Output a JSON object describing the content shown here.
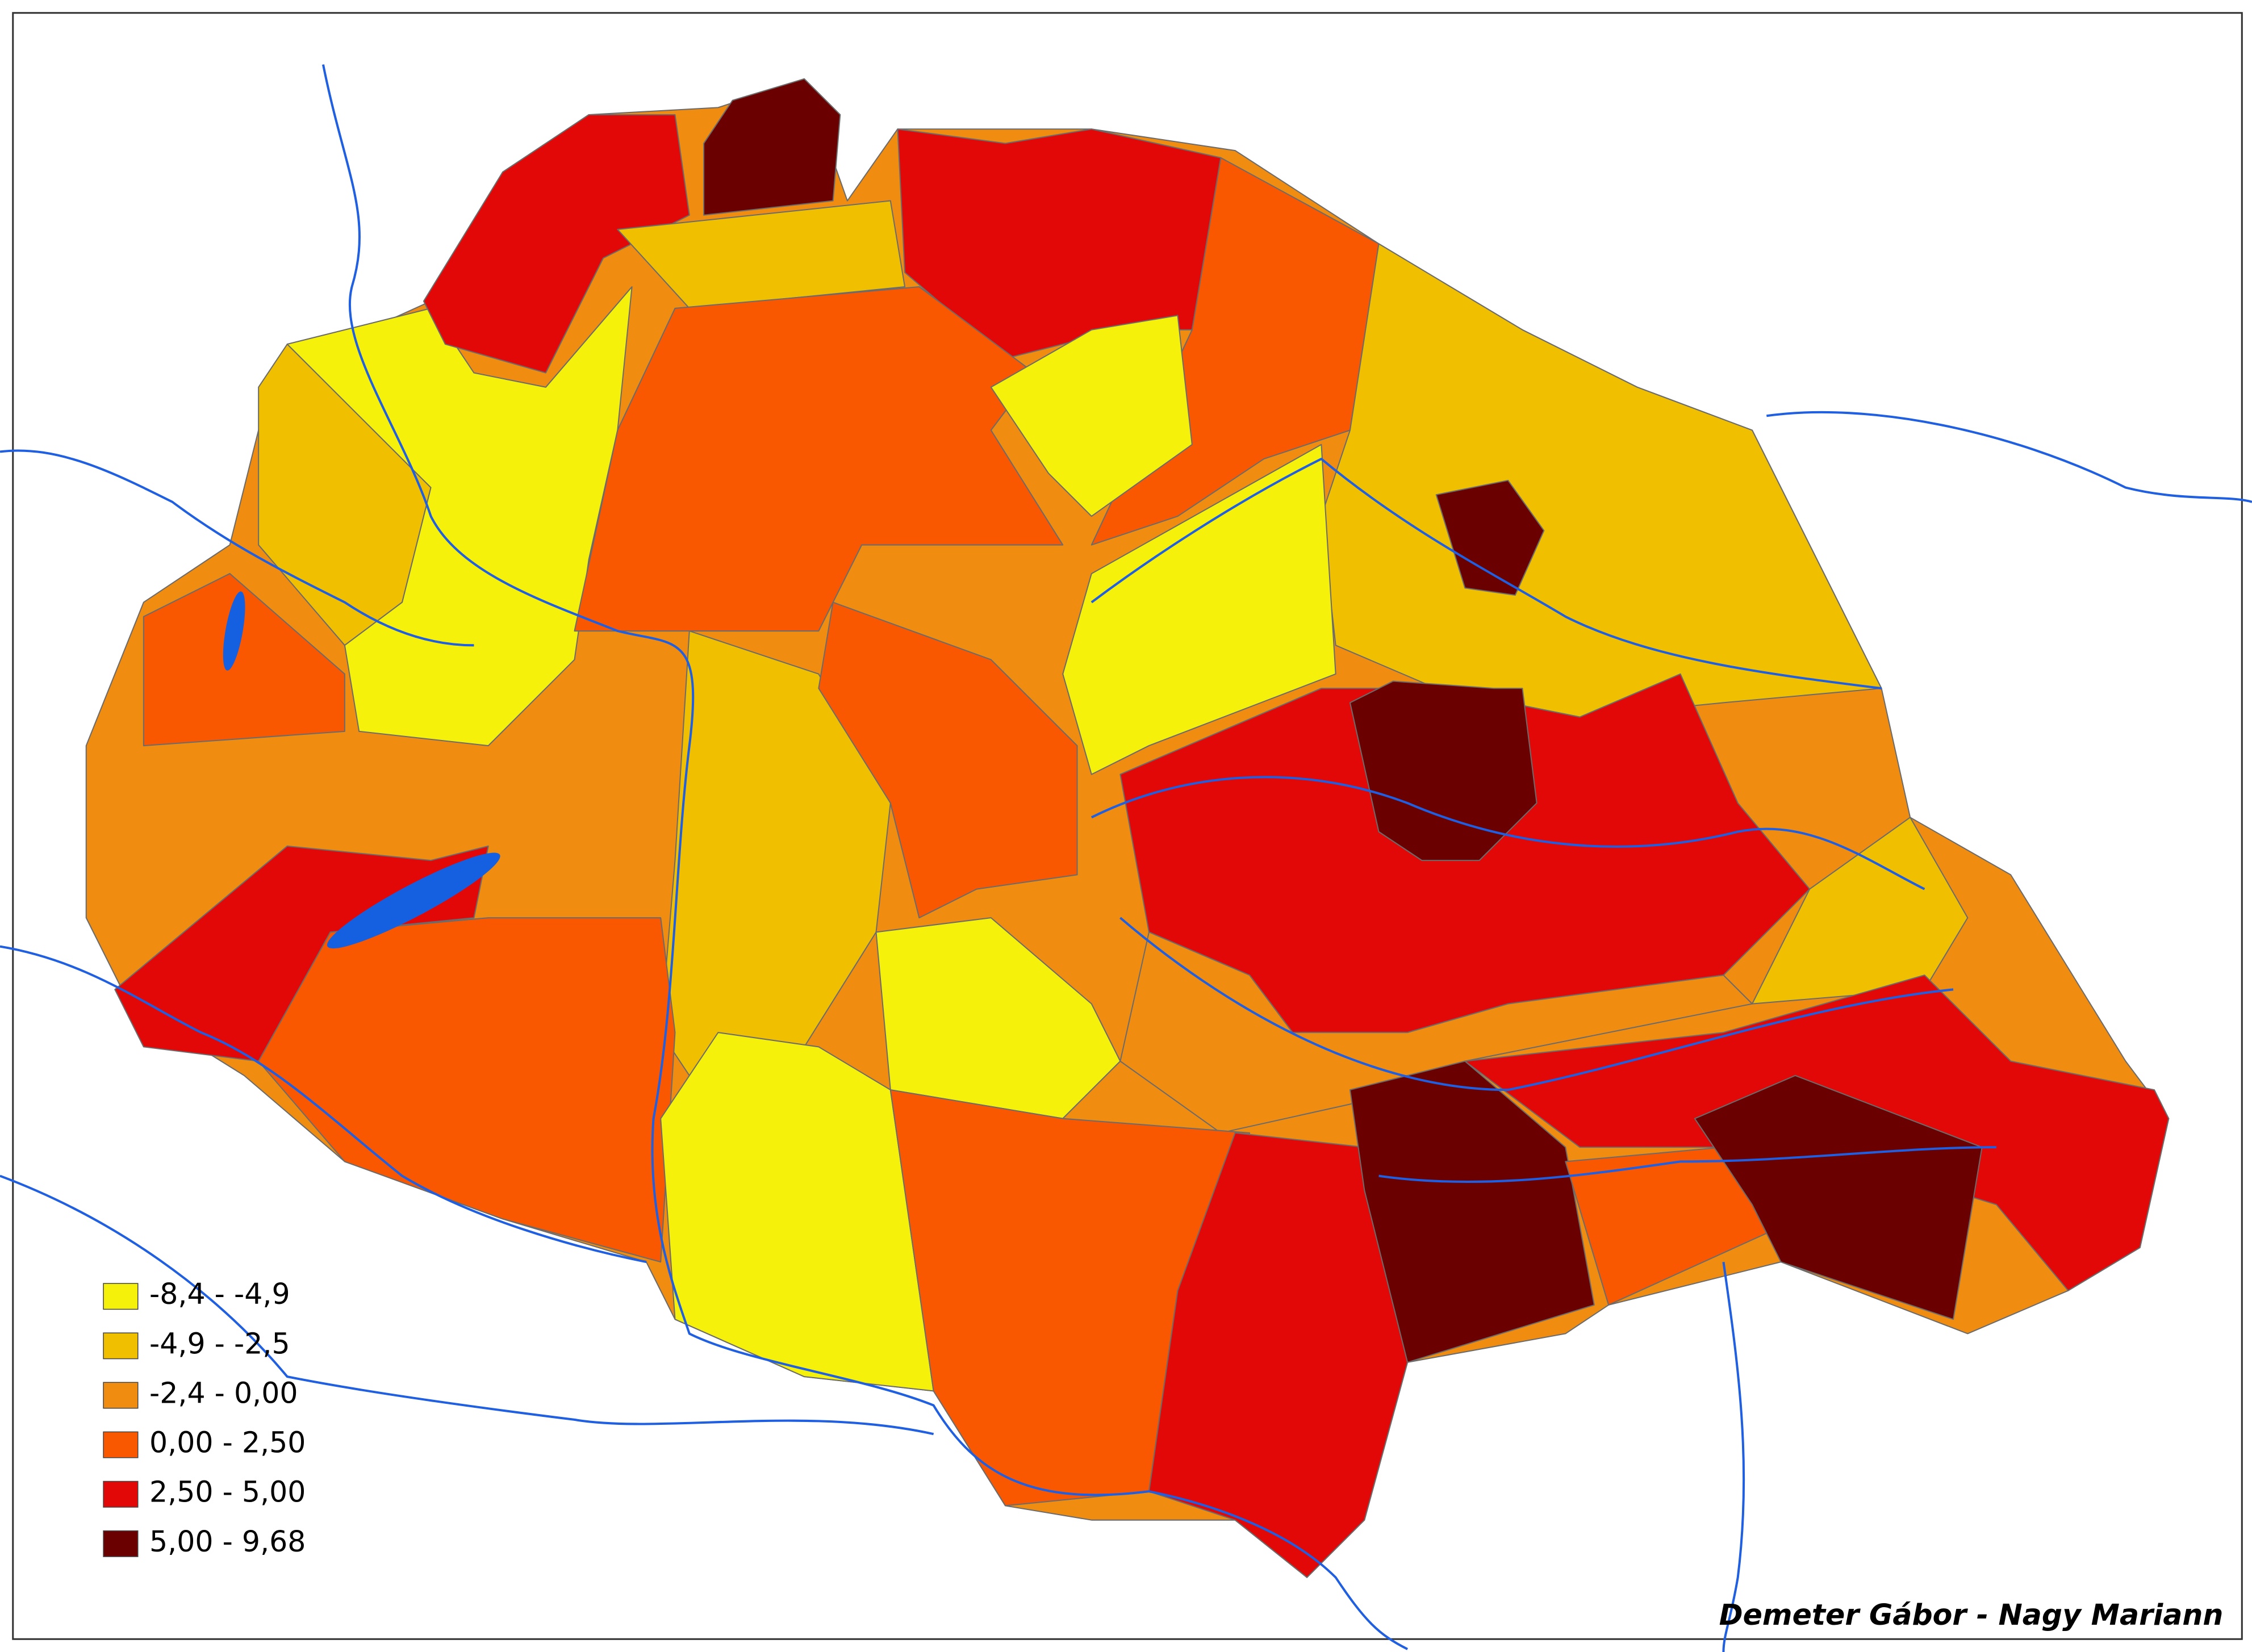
{
  "legend": {
    "items": [
      {
        "label": "-8,4  - -4,9",
        "color": "#f5f10a"
      },
      {
        "label": "-4,9  - -2,5",
        "color": "#f0c000"
      },
      {
        "label": "-2,4  - 0,00",
        "color": "#f08c10"
      },
      {
        "label": "0,00 - 2,50",
        "color": "#fa5800"
      },
      {
        "label": "2,50 - 5,00",
        "color": "#e20808"
      },
      {
        "label": "5,00 - 9,68",
        "color": "#6b0000"
      }
    ]
  },
  "credit": "Demeter Gábor - Nagy Mariann"
}
